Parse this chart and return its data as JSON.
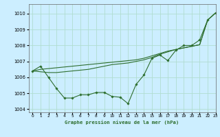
{
  "title": "Graphe pression niveau de la mer (hPa)",
  "background_color": "#cceeff",
  "grid_color": "#b0ddd0",
  "line_color": "#2d6e2d",
  "xlim": [
    -0.5,
    23
  ],
  "ylim": [
    1003.8,
    1010.6
  ],
  "yticks": [
    1004,
    1005,
    1006,
    1007,
    1008,
    1009,
    1010
  ],
  "xticks": [
    0,
    1,
    2,
    3,
    4,
    5,
    6,
    7,
    8,
    9,
    10,
    11,
    12,
    13,
    14,
    15,
    16,
    17,
    18,
    19,
    20,
    21,
    22,
    23
  ],
  "zigzag_x": [
    0,
    1,
    2,
    3,
    4,
    5,
    6,
    7,
    8,
    9,
    10,
    11,
    12,
    13,
    14,
    15,
    16,
    17,
    18,
    19,
    20,
    21,
    22,
    23
  ],
  "zigzag_y": [
    1006.4,
    1006.7,
    1006.0,
    1005.3,
    1004.7,
    1004.7,
    1004.9,
    1004.9,
    1005.05,
    1005.05,
    1004.8,
    1004.75,
    1004.35,
    1005.55,
    1006.15,
    1007.2,
    1007.4,
    1007.05,
    1007.7,
    1008.0,
    1008.0,
    1008.35,
    1009.6,
    1010.05
  ],
  "trend1_x": [
    0,
    1,
    2,
    3,
    4,
    5,
    6,
    7,
    8,
    9,
    10,
    11,
    12,
    13,
    14,
    15,
    16,
    17,
    18,
    19,
    20,
    21,
    22,
    23
  ],
  "trend1_y": [
    1006.4,
    1006.35,
    1006.3,
    1006.3,
    1006.35,
    1006.4,
    1006.45,
    1006.5,
    1006.6,
    1006.7,
    1006.8,
    1006.85,
    1006.9,
    1007.0,
    1007.1,
    1007.25,
    1007.45,
    1007.6,
    1007.75,
    1007.85,
    1007.95,
    1008.05,
    1009.6,
    1010.05
  ],
  "trend2_x": [
    0,
    1,
    2,
    3,
    4,
    5,
    6,
    7,
    8,
    9,
    10,
    11,
    12,
    13,
    14,
    15,
    16,
    17,
    18,
    19,
    20,
    21,
    22,
    23
  ],
  "trend2_y": [
    1006.4,
    1006.5,
    1006.55,
    1006.6,
    1006.65,
    1006.7,
    1006.75,
    1006.8,
    1006.85,
    1006.9,
    1006.95,
    1007.0,
    1007.05,
    1007.1,
    1007.2,
    1007.35,
    1007.5,
    1007.65,
    1007.75,
    1007.85,
    1007.95,
    1008.05,
    1009.6,
    1010.05
  ]
}
